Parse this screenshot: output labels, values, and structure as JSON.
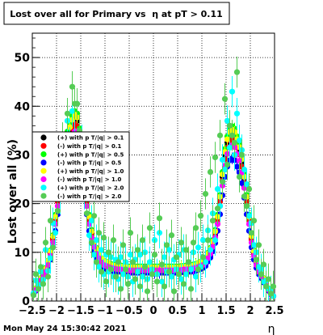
{
  "chart_data": {
    "type": "scatter",
    "title": "Lost over all for Primary vs  η at pT > 0.11",
    "xlabel": "η",
    "ylabel": "Lost over all (%)",
    "xlim": [
      -2.5,
      2.5
    ],
    "ylim": [
      0,
      55
    ],
    "x_ticks": [
      -2.5,
      -2,
      -1.5,
      -1,
      -0.5,
      0,
      0.5,
      1,
      1.5,
      2,
      2.5
    ],
    "x_tick_labels": [
      "−2.5",
      "−2",
      "−1.5",
      "−1",
      "−0.5",
      "0",
      "0.5",
      "1",
      "1.5",
      "2",
      "2.5"
    ],
    "y_ticks": [
      0,
      10,
      20,
      30,
      40,
      50
    ],
    "y_tick_labels": [
      "0",
      "10",
      "20",
      "30",
      "40",
      "50"
    ],
    "grid": true,
    "legend_position": "middle-left",
    "timestamp": "Mon May 24 15:30:42 2021",
    "x": [
      -2.475,
      -2.425,
      -2.375,
      -2.325,
      -2.275,
      -2.225,
      -2.175,
      -2.125,
      -2.075,
      -2.025,
      -1.975,
      -1.925,
      -1.875,
      -1.825,
      -1.775,
      -1.725,
      -1.675,
      -1.625,
      -1.575,
      -1.525,
      -1.475,
      -1.425,
      -1.375,
      -1.325,
      -1.275,
      -1.225,
      -1.175,
      -1.125,
      -1.075,
      -1.025,
      -0.975,
      -0.925,
      -0.875,
      -0.825,
      -0.775,
      -0.725,
      -0.675,
      -0.625,
      -0.575,
      -0.525,
      -0.475,
      -0.425,
      -0.375,
      -0.325,
      -0.275,
      -0.225,
      -0.175,
      -0.125,
      -0.075,
      -0.025,
      0.025,
      0.075,
      0.125,
      0.175,
      0.225,
      0.275,
      0.325,
      0.375,
      0.425,
      0.475,
      0.525,
      0.575,
      0.625,
      0.675,
      0.725,
      0.775,
      0.825,
      0.875,
      0.925,
      0.975,
      1.025,
      1.075,
      1.125,
      1.175,
      1.225,
      1.275,
      1.325,
      1.375,
      1.425,
      1.475,
      1.525,
      1.575,
      1.625,
      1.675,
      1.725,
      1.775,
      1.825,
      1.875,
      1.925,
      1.975,
      2.025,
      2.075,
      2.125,
      2.175,
      2.225,
      2.275,
      2.325,
      2.375,
      2.425,
      2.475
    ],
    "series": [
      {
        "name": "(+) with p T/|q| > 0.1",
        "color": "#000000",
        "values": [
          1.5,
          2.5,
          3.5,
          4.5,
          5.5,
          6.5,
          8.0,
          10.0,
          13.0,
          17.0,
          21.0,
          25.0,
          28.5,
          31.5,
          33.5,
          35.0,
          36.5,
          37.5,
          37.0,
          34.0,
          30.0,
          25.5,
          21.0,
          17.0,
          14.0,
          12.0,
          10.5,
          9.5,
          8.5,
          8.0,
          7.8,
          7.5,
          7.3,
          7.2,
          7.1,
          7.0,
          7.0,
          6.9,
          6.9,
          6.8,
          6.8,
          6.8,
          6.8,
          6.8,
          6.8,
          6.8,
          6.8,
          6.8,
          6.8,
          6.8,
          6.8,
          6.8,
          6.8,
          6.8,
          6.8,
          6.8,
          6.8,
          6.8,
          6.8,
          6.8,
          6.8,
          6.9,
          6.9,
          7.0,
          7.0,
          7.1,
          7.2,
          7.3,
          7.5,
          7.8,
          8.0,
          8.5,
          9.5,
          10.5,
          12.0,
          14.0,
          17.0,
          21.0,
          25.5,
          30.0,
          32.5,
          34.0,
          34.5,
          34.0,
          32.5,
          31.0,
          28.5,
          25.0,
          21.0,
          17.0,
          13.0,
          10.0,
          8.0,
          6.5,
          5.5,
          4.5,
          3.5,
          2.5,
          1.5,
          1.0
        ]
      },
      {
        "name": "(-) with p T/|q| > 0.1",
        "color": "#ff0000",
        "values": [
          1.4,
          2.4,
          3.4,
          4.4,
          5.3,
          6.3,
          7.8,
          9.7,
          12.6,
          16.5,
          20.4,
          24.3,
          27.6,
          30.6,
          32.5,
          34.0,
          35.4,
          36.4,
          35.9,
          33.0,
          29.1,
          24.7,
          20.4,
          16.5,
          13.6,
          11.6,
          10.2,
          9.2,
          8.2,
          7.8,
          7.6,
          7.3,
          7.1,
          7.0,
          6.9,
          6.8,
          6.8,
          6.7,
          6.7,
          6.6,
          6.6,
          6.6,
          6.6,
          6.6,
          6.6,
          6.6,
          6.6,
          6.6,
          6.6,
          6.6,
          6.6,
          6.6,
          6.6,
          6.6,
          6.6,
          6.6,
          6.6,
          6.6,
          6.6,
          6.6,
          6.6,
          6.7,
          6.7,
          6.8,
          6.8,
          6.9,
          7.0,
          7.1,
          7.3,
          7.6,
          7.8,
          8.2,
          9.2,
          10.2,
          11.6,
          13.6,
          16.5,
          20.4,
          24.7,
          29.1,
          31.5,
          33.0,
          33.5,
          33.0,
          31.5,
          30.1,
          27.6,
          24.3,
          20.4,
          16.5,
          12.6,
          9.7,
          7.8,
          6.3,
          5.3,
          4.4,
          3.4,
          2.4,
          1.4,
          1.0
        ]
      },
      {
        "name": "(+) with p T/|q| > 0.5",
        "color": "#00ff00",
        "values": [
          1.5,
          2.6,
          3.6,
          4.7,
          5.7,
          6.8,
          8.3,
          10.4,
          13.5,
          17.7,
          21.8,
          26.0,
          29.6,
          32.8,
          34.8,
          36.4,
          38.0,
          39.0,
          38.5,
          35.4,
          31.2,
          26.5,
          21.8,
          17.7,
          14.6,
          12.5,
          10.9,
          9.9,
          8.8,
          8.3,
          8.1,
          7.8,
          7.6,
          7.5,
          7.4,
          7.3,
          7.3,
          7.2,
          7.2,
          7.1,
          7.1,
          7.1,
          7.1,
          7.1,
          7.1,
          7.1,
          7.1,
          7.1,
          7.1,
          7.1,
          7.1,
          7.1,
          7.1,
          7.1,
          7.1,
          7.1,
          7.1,
          7.1,
          7.1,
          7.1,
          7.1,
          7.2,
          7.2,
          7.3,
          7.3,
          7.4,
          7.5,
          7.6,
          7.8,
          8.1,
          8.3,
          8.8,
          9.9,
          10.9,
          12.5,
          14.6,
          17.7,
          21.8,
          26.5,
          31.2,
          33.8,
          35.4,
          35.9,
          35.4,
          33.8,
          32.2,
          29.6,
          26.0,
          21.8,
          17.7,
          13.5,
          10.4,
          8.3,
          6.8,
          5.7,
          4.7,
          3.6,
          2.6,
          1.5,
          1.0
        ]
      },
      {
        "name": "(-) with p T/|q| > 0.5",
        "color": "#0000ff",
        "values": [
          1.3,
          2.1,
          3.0,
          3.8,
          4.7,
          5.5,
          6.8,
          8.5,
          11.0,
          14.4,
          17.8,
          21.2,
          24.2,
          26.8,
          28.5,
          29.8,
          31.0,
          31.9,
          31.4,
          28.9,
          25.5,
          21.7,
          17.8,
          14.4,
          11.9,
          10.2,
          8.9,
          8.1,
          7.2,
          6.8,
          6.6,
          6.4,
          6.2,
          6.1,
          6.0,
          6.0,
          6.0,
          5.9,
          5.9,
          5.8,
          5.8,
          5.8,
          5.8,
          5.8,
          5.8,
          5.8,
          5.8,
          5.8,
          5.8,
          5.8,
          5.8,
          5.8,
          5.8,
          5.8,
          5.8,
          5.8,
          5.8,
          5.8,
          5.8,
          5.8,
          5.8,
          5.9,
          5.9,
          6.0,
          6.0,
          6.0,
          6.1,
          6.2,
          6.4,
          6.6,
          6.8,
          7.2,
          8.1,
          8.9,
          10.2,
          11.9,
          14.4,
          17.8,
          21.7,
          25.5,
          27.6,
          28.9,
          29.3,
          28.9,
          27.6,
          26.4,
          24.2,
          21.2,
          17.8,
          14.4,
          11.0,
          8.5,
          6.8,
          5.5,
          4.7,
          3.8,
          3.0,
          2.1,
          1.3,
          1.0
        ]
      },
      {
        "name": "(+) with p T/|q| > 1.0",
        "color": "#ffff00",
        "values": [
          1.5,
          2.5,
          3.6,
          4.6,
          5.6,
          6.6,
          8.2,
          10.2,
          13.3,
          17.3,
          21.4,
          25.5,
          29.1,
          32.1,
          34.2,
          35.7,
          37.2,
          38.3,
          37.7,
          34.7,
          30.6,
          26.0,
          21.4,
          17.3,
          14.3,
          12.2,
          10.7,
          9.7,
          8.7,
          8.2,
          8.0,
          7.7,
          7.4,
          7.3,
          7.2,
          7.1,
          7.1,
          7.0,
          7.0,
          6.9,
          6.9,
          6.9,
          6.9,
          6.9,
          6.9,
          6.9,
          6.9,
          6.9,
          6.9,
          6.9,
          6.9,
          6.9,
          6.9,
          6.9,
          6.9,
          6.9,
          6.9,
          6.9,
          6.9,
          6.9,
          6.9,
          7.0,
          7.0,
          7.1,
          7.1,
          7.2,
          7.3,
          7.4,
          7.7,
          8.0,
          8.2,
          8.7,
          9.7,
          10.7,
          12.2,
          14.3,
          17.3,
          21.4,
          26.0,
          30.6,
          33.2,
          34.7,
          35.2,
          34.7,
          33.2,
          31.6,
          29.1,
          25.5,
          21.4,
          17.3,
          13.3,
          10.2,
          8.2,
          6.6,
          5.6,
          4.6,
          3.6,
          2.5,
          1.5,
          1.0
        ]
      },
      {
        "name": "(-) with p T/|q| > 1.0",
        "color": "#ff00ff",
        "values": [
          1.4,
          2.3,
          3.3,
          4.2,
          5.1,
          6.0,
          7.4,
          9.3,
          12.0,
          15.8,
          19.5,
          23.2,
          26.4,
          29.2,
          31.1,
          32.5,
          33.8,
          34.8,
          34.3,
          31.6,
          27.8,
          23.7,
          19.5,
          15.8,
          13.0,
          11.1,
          9.7,
          8.8,
          7.9,
          7.4,
          7.2,
          7.0,
          6.8,
          6.7,
          6.6,
          6.5,
          6.5,
          6.4,
          6.4,
          6.3,
          6.3,
          6.3,
          6.3,
          6.3,
          6.3,
          6.3,
          6.3,
          6.3,
          6.3,
          6.3,
          6.3,
          6.3,
          6.3,
          6.3,
          6.3,
          6.3,
          6.3,
          6.3,
          6.3,
          6.3,
          6.3,
          6.4,
          6.4,
          6.5,
          6.5,
          6.6,
          6.7,
          6.8,
          7.0,
          7.2,
          7.4,
          7.9,
          8.8,
          9.7,
          11.1,
          13.0,
          15.8,
          19.5,
          23.7,
          27.8,
          30.2,
          31.6,
          32.0,
          31.6,
          30.2,
          28.8,
          26.4,
          23.2,
          19.5,
          15.8,
          12.0,
          9.3,
          7.4,
          6.0,
          5.1,
          4.2,
          3.3,
          2.3,
          1.4,
          1.0
        ]
      },
      {
        "name": "(+) with p T/|q| > 2.0",
        "color": "#00ffff",
        "values": [
          1.6,
          4.2,
          3.3,
          6.0,
          4.4,
          10.5,
          6.2,
          8.8,
          16.0,
          14.0,
          23.5,
          21.0,
          30.0,
          29.5,
          37.0,
          32.5,
          39.0,
          34.0,
          40.5,
          31.0,
          33.0,
          22.0,
          23.5,
          13.5,
          16.5,
          9.5,
          12.5,
          7.0,
          10.5,
          5.5,
          9.5,
          6.0,
          9.0,
          5.0,
          8.5,
          4.5,
          9.0,
          5.5,
          8.0,
          5.0,
          9.5,
          4.0,
          8.5,
          6.0,
          9.5,
          5.0,
          10.0,
          4.5,
          8.0,
          6.5,
          12.5,
          5.5,
          14.0,
          4.0,
          9.0,
          6.0,
          10.5,
          5.0,
          8.5,
          6.5,
          9.5,
          4.5,
          10.5,
          5.5,
          8.0,
          6.5,
          10.0,
          5.0,
          11.0,
          7.0,
          12.5,
          8.0,
          14.5,
          10.5,
          18.0,
          12.5,
          23.0,
          19.5,
          29.0,
          27.0,
          37.0,
          31.5,
          43.0,
          30.0,
          38.5,
          33.0,
          31.0,
          27.0,
          24.0,
          17.5,
          16.0,
          11.5,
          10.0,
          7.0,
          6.5,
          4.0,
          4.2,
          2.5,
          2.0,
          1.0
        ]
      },
      {
        "name": "(-) with p T/|q| > 2.0",
        "color": "#55cc55",
        "values": [
          1.2,
          5.5,
          2.5,
          7.0,
          3.5,
          12.0,
          5.0,
          16.5,
          11.0,
          24.0,
          18.5,
          27.5,
          33.5,
          26.0,
          38.5,
          31.0,
          44.0,
          40.5,
          40.5,
          35.0,
          29.0,
          27.5,
          18.0,
          21.0,
          12.0,
          17.5,
          8.0,
          14.0,
          6.0,
          13.0,
          4.0,
          10.0,
          6.5,
          12.5,
          5.0,
          8.0,
          2.5,
          11.5,
          6.5,
          3.5,
          14.0,
          8.0,
          4.5,
          10.5,
          3.0,
          12.5,
          7.0,
          2.0,
          15.0,
          5.5,
          9.5,
          4.0,
          17.0,
          7.5,
          3.0,
          11.5,
          6.0,
          13.5,
          2.0,
          9.0,
          5.5,
          12.0,
          3.5,
          10.5,
          8.0,
          2.5,
          12.0,
          15.0,
          6.5,
          17.5,
          9.0,
          22.0,
          12.5,
          26.5,
          16.5,
          29.5,
          19.0,
          34.0,
          24.5,
          41.5,
          28.0,
          36.0,
          34.0,
          32.5,
          47.0,
          25.5,
          30.0,
          21.5,
          19.5,
          23.0,
          14.0,
          16.5,
          8.5,
          11.5,
          5.5,
          7.5,
          3.0,
          4.5,
          1.5,
          3.0
        ]
      }
    ]
  }
}
